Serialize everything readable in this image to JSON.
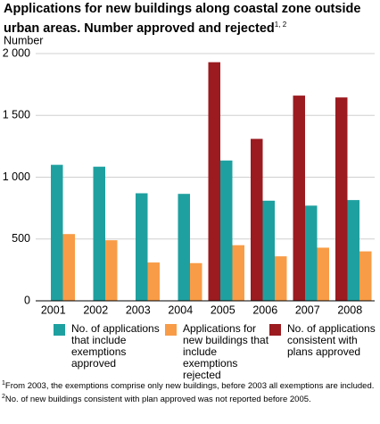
{
  "chart_data": {
    "type": "bar",
    "title": "Applications for new buildings along coastal zone outside urban areas. Number approved and rejected",
    "title_note": "1, 2",
    "y_label": "Number",
    "categories": [
      "2001",
      "2002",
      "2003",
      "2004",
      "2005",
      "2006",
      "2007",
      "2008"
    ],
    "series": [
      {
        "name": "No. of applications that include exemptions approved",
        "color": "#1fa0a0",
        "values": [
          1100,
          1085,
          870,
          865,
          1135,
          810,
          770,
          815
        ]
      },
      {
        "name": "Applications for new buildings that include exemptions rejected",
        "color": "#f89c47",
        "values": [
          540,
          490,
          310,
          305,
          450,
          360,
          430,
          400
        ]
      },
      {
        "name": "No. of applications consistent with plans approved",
        "color": "#9b1b20",
        "values": [
          null,
          null,
          null,
          null,
          1930,
          1310,
          1660,
          1645
        ]
      }
    ],
    "ylim": [
      0,
      2000
    ],
    "yticks": [
      0,
      500,
      {
        "value": 1000,
        "label": "1 000"
      },
      {
        "value": 1500,
        "label": "1 500"
      },
      {
        "value": 2000,
        "label": "2 000"
      }
    ],
    "grid": true,
    "footnotes": [
      {
        "marker": "1",
        "text": "From 2003, the exemptions comprise only new buildings, before 2003 all exemptions are included."
      },
      {
        "marker": "2",
        "text": "No. of new buildings consistent with plan approved was not reported before 2005."
      }
    ]
  }
}
